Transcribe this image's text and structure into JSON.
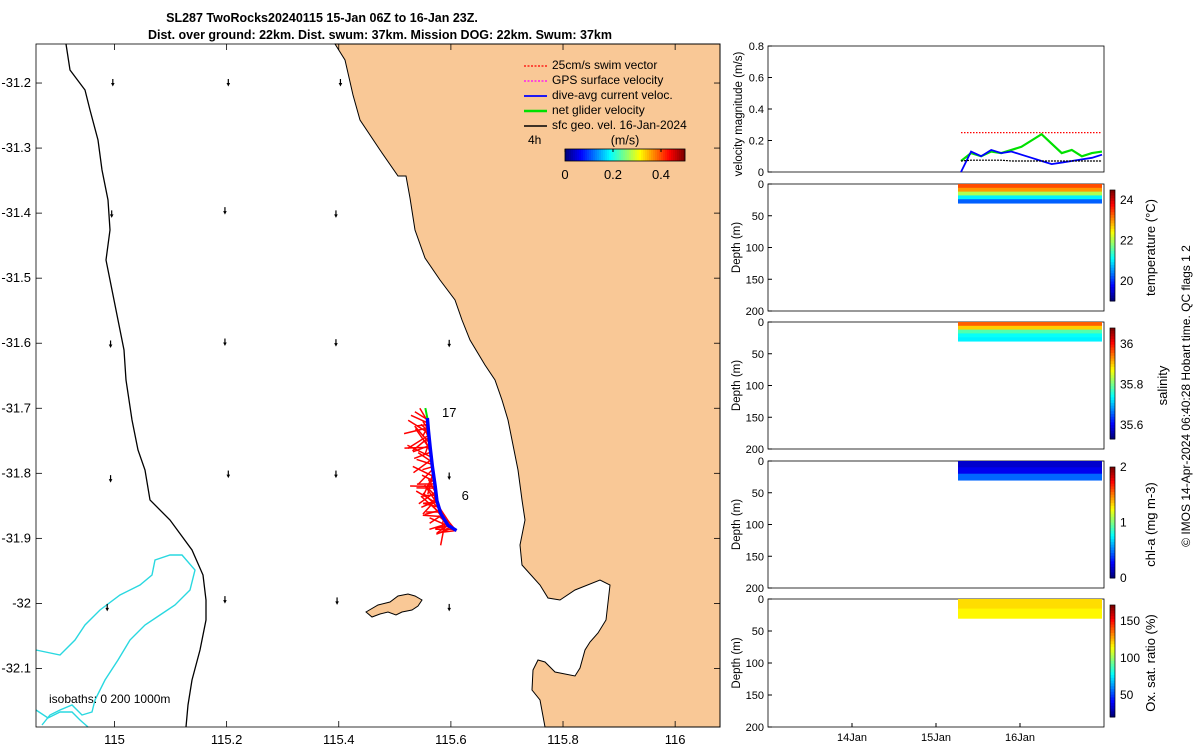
{
  "title_line1": "SL287 TwoRocks20240115 15-Jan 06Z to 16-Jan 23Z.",
  "title_line2": "Dist. over ground: 22km. Dist. swum: 37km. Mission DOG: 22km. Swum: 37km",
  "colors": {
    "land": "#f9c896",
    "coast": "#000000",
    "isobath": "#29d8e0"
  },
  "chart_data": [
    {
      "type": "map",
      "xlim": [
        114.86,
        116.08
      ],
      "ylim": [
        -32.19,
        -31.14
      ],
      "x_ticks": [
        "115",
        "115.2",
        "115.4",
        "115.6",
        "115.8",
        "116"
      ],
      "x_tick_values": [
        115,
        115.2,
        115.4,
        115.6,
        115.8,
        116
      ],
      "y_ticks": [
        "-31.2",
        "-31.3",
        "-31.4",
        "-31.5",
        "-31.6",
        "-31.7",
        "-31.8",
        "-31.9",
        "-32",
        "-32.1"
      ],
      "y_tick_values": [
        -31.2,
        -31.3,
        -31.4,
        -31.5,
        -31.6,
        -31.7,
        -31.8,
        -31.9,
        -32,
        -32.1
      ],
      "legend": [
        {
          "label": "25cm/s swim vector",
          "color": "#ff0000",
          "style": "dotted"
        },
        {
          "label": "GPS surface velocity",
          "color": "#ff00ff",
          "style": "dotted"
        },
        {
          "label": "dive-avg current veloc.",
          "color": "#0000ff",
          "style": "solid"
        },
        {
          "label": "net glider velocity",
          "color": "#00e000",
          "style": "solid"
        },
        {
          "label": "sfc geo. vel. 16-Jan-2024",
          "color": "#000000",
          "style": "solid"
        }
      ],
      "scale_label": "4h",
      "colorbar": {
        "label": "(m/s)",
        "ticks": [
          "0",
          "0.2",
          "0.4"
        ],
        "tick_values": [
          0,
          0.2,
          0.4
        ],
        "range": [
          0,
          0.5
        ]
      },
      "isobaths_label": "isobaths: 0   200  1000m",
      "track_labels": [
        {
          "text": "17",
          "lon": 115.577,
          "lat": -31.707
        },
        {
          "text": "6",
          "lon": 115.612,
          "lat": -31.835
        }
      ],
      "track": [
        [
          115.61,
          -31.888
        ],
        [
          115.595,
          -31.88
        ],
        [
          115.582,
          -31.862
        ],
        [
          115.575,
          -31.842
        ],
        [
          115.572,
          -31.82
        ],
        [
          115.567,
          -31.79
        ],
        [
          115.563,
          -31.76
        ],
        [
          115.56,
          -31.735
        ],
        [
          115.558,
          -31.715
        ]
      ],
      "geo_vectors": [
        [
          114.997,
          -31.203
        ],
        [
          115.203,
          -31.203
        ],
        [
          115.403,
          -31.203
        ],
        [
          114.995,
          -31.405
        ],
        [
          115.197,
          -31.4
        ],
        [
          115.395,
          -31.405
        ],
        [
          114.993,
          -31.605
        ],
        [
          115.197,
          -31.602
        ],
        [
          115.395,
          -31.603
        ],
        [
          115.597,
          -31.604
        ],
        [
          114.993,
          -31.812
        ],
        [
          115.203,
          -31.805
        ],
        [
          115.395,
          -31.805
        ],
        [
          115.597,
          -31.808
        ],
        [
          114.987,
          -32.01
        ],
        [
          115.197,
          -31.998
        ],
        [
          115.397,
          -32.0
        ],
        [
          115.597,
          -32.01
        ]
      ]
    },
    {
      "type": "line",
      "ylabel": "velocity magnitude (m/s)",
      "ylim": [
        0,
        0.8
      ],
      "y_ticks": [
        "0",
        "0.2",
        "0.4",
        "0.6",
        "0.8"
      ],
      "y_tick_values": [
        0,
        0.2,
        0.4,
        0.6,
        0.8
      ],
      "x": [
        "15-Jan 06Z",
        "15-Jan 09Z",
        "15-Jan 12Z",
        "15-Jan 15Z",
        "15-Jan 18Z",
        "15-Jan 21Z",
        "16-Jan 00Z",
        "16-Jan 03Z",
        "16-Jan 06Z",
        "16-Jan 09Z",
        "16-Jan 12Z",
        "16-Jan 15Z",
        "16-Jan 18Z",
        "16-Jan 21Z",
        "16-Jan 23Z"
      ],
      "series": [
        {
          "color": "#ff0000",
          "values": [
            0.25,
            0.25,
            0.25,
            0.25,
            0.25,
            0.25,
            0.25,
            0.25,
            0.25,
            0.25,
            0.25,
            0.25,
            0.25,
            0.25,
            0.25
          ]
        },
        {
          "color": "#00e000",
          "values": [
            0.07,
            0.12,
            0.1,
            0.13,
            0.12,
            0.14,
            0.16,
            0.2,
            0.24,
            0.18,
            0.12,
            0.14,
            0.1,
            0.12,
            0.13
          ]
        },
        {
          "color": "#0000ff",
          "values": [
            0.0,
            0.13,
            0.1,
            0.14,
            0.12,
            0.13,
            0.11,
            0.09,
            0.07,
            0.05,
            0.06,
            0.07,
            0.08,
            0.09,
            0.11
          ]
        },
        {
          "color": "#000000",
          "values": [
            0.07,
            0.075,
            0.075,
            0.075,
            0.075,
            0.07,
            0.07,
            0.07,
            0.07,
            0.07,
            0.07,
            0.07,
            0.07,
            0.07,
            0.07
          ]
        }
      ]
    },
    {
      "type": "heatmap",
      "ylabel": "Depth (m)",
      "colorbar_label": "temperature (°C)",
      "y_ticks": [
        "0",
        "50",
        "100",
        "150",
        "200"
      ],
      "y_tick_values": [
        0,
        50,
        100,
        150,
        200
      ],
      "cbar_ticks": [
        "24",
        "22",
        "20"
      ],
      "cbar_tick_values": [
        24,
        22,
        20
      ],
      "cbar_range": [
        19,
        24.5
      ],
      "depth_range": [
        0,
        30
      ],
      "layers": [
        {
          "depth": [
            0,
            6
          ],
          "value": 23.4
        },
        {
          "depth": [
            6,
            12
          ],
          "value": 23.0
        },
        {
          "depth": [
            12,
            18
          ],
          "value": 22.0
        },
        {
          "depth": [
            18,
            24
          ],
          "value": 21.0
        },
        {
          "depth": [
            24,
            30
          ],
          "value": 20.2
        }
      ]
    },
    {
      "type": "heatmap",
      "ylabel": "Depth (m)",
      "colorbar_label": "salinity",
      "y_ticks": [
        "0",
        "50",
        "100",
        "150",
        "200"
      ],
      "y_tick_values": [
        0,
        50,
        100,
        150,
        200
      ],
      "cbar_ticks": [
        "36",
        "35.8",
        "35.6"
      ],
      "cbar_tick_values": [
        36,
        35.8,
        35.6
      ],
      "cbar_range": [
        35.53,
        36.08
      ],
      "depth_range": [
        0,
        30
      ],
      "layers": [
        {
          "depth": [
            0,
            6
          ],
          "value": 35.96
        },
        {
          "depth": [
            6,
            12
          ],
          "value": 35.9
        },
        {
          "depth": [
            12,
            18
          ],
          "value": 35.78
        },
        {
          "depth": [
            18,
            24
          ],
          "value": 35.74
        },
        {
          "depth": [
            24,
            30
          ],
          "value": 35.73
        }
      ]
    },
    {
      "type": "heatmap",
      "ylabel": "Depth (m)",
      "colorbar_label": "chl-a (mg m-3)",
      "y_ticks": [
        "0",
        "50",
        "100",
        "150",
        "200"
      ],
      "y_tick_values": [
        0,
        50,
        100,
        150,
        200
      ],
      "cbar_ticks": [
        "2",
        "1",
        "0"
      ],
      "cbar_tick_values": [
        2,
        1,
        0
      ],
      "cbar_range": [
        0,
        2
      ],
      "depth_range": [
        0,
        30
      ],
      "layers": [
        {
          "depth": [
            0,
            10
          ],
          "value": 0.15
        },
        {
          "depth": [
            10,
            20
          ],
          "value": 0.22
        },
        {
          "depth": [
            20,
            30
          ],
          "value": 0.45
        }
      ]
    },
    {
      "type": "heatmap",
      "ylabel": "Depth (m)",
      "colorbar_label": "Ox. sat. ratio (%)",
      "y_ticks": [
        "0",
        "50",
        "100",
        "150",
        "200"
      ],
      "y_tick_values": [
        0,
        50,
        100,
        150,
        200
      ],
      "x_ticks": [
        "14Jan",
        "15Jan",
        "16Jan"
      ],
      "cbar_ticks": [
        "150",
        "100",
        "50"
      ],
      "cbar_tick_values": [
        150,
        100,
        50
      ],
      "cbar_range": [
        20,
        172
      ],
      "depth_range": [
        0,
        30
      ],
      "layers": [
        {
          "depth": [
            0,
            15
          ],
          "value": 120
        },
        {
          "depth": [
            15,
            30
          ],
          "value": 116
        }
      ]
    }
  ],
  "footer": "© IMOS 14-Apr-2024 06:40:28 Hobart time. QC flags 1  2"
}
